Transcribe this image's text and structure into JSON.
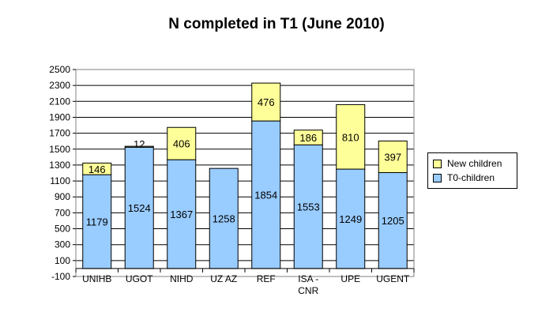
{
  "chart_data": {
    "type": "bar",
    "stacked": true,
    "title": "N completed in T1 (June 2010)",
    "categories": [
      "UNIHB",
      "UGOT",
      "NIHD",
      "UZAZ",
      "REF",
      "ISA-CNR",
      "UPE",
      "UGENT"
    ],
    "category_labels": [
      [
        "UNIHB"
      ],
      [
        "UGOT"
      ],
      [
        "NIHD"
      ],
      [
        "UZ AZ"
      ],
      [
        "REF"
      ],
      [
        "ISA -",
        "CNR"
      ],
      [
        "UPE"
      ],
      [
        "UGENT"
      ]
    ],
    "series": [
      {
        "name": "T0-children",
        "color": "#99ccff",
        "values": [
          1179,
          1524,
          1367,
          1258,
          1854,
          1553,
          1249,
          1205
        ],
        "labels": [
          "1179",
          "1524",
          "1367",
          "1258",
          "1854",
          "1553",
          "1249",
          "1205"
        ]
      },
      {
        "name": "New children",
        "color": "#ffff99",
        "values": [
          146,
          12,
          406,
          0,
          476,
          186,
          810,
          397
        ],
        "labels": [
          "146",
          "12",
          "406",
          "",
          "476",
          "186",
          "810",
          "397"
        ]
      }
    ],
    "legend_order": [
      1,
      0
    ],
    "ylim": [
      -100,
      2500
    ],
    "yticks": [
      -100,
      100,
      300,
      500,
      700,
      900,
      1100,
      1300,
      1500,
      1700,
      1900,
      2100,
      2300,
      2500
    ],
    "ytick_labels": [
      "-100",
      "100",
      "300",
      "500",
      "700",
      "900",
      "1100",
      "1300",
      "1500",
      "1700",
      "1900",
      "2100",
      "2300",
      "2500"
    ],
    "grid": true,
    "legend_position": "right"
  }
}
